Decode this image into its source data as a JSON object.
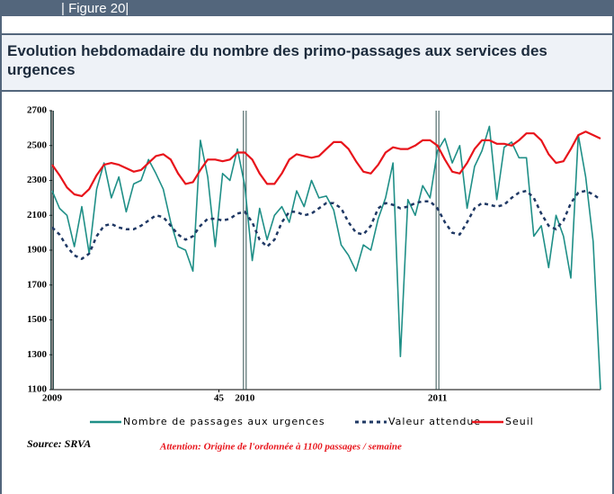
{
  "header": "| Figure 20|",
  "chart_data": {
    "type": "line",
    "title": "Evolution hebdomadaire du nombre des primo-passages aux services des urgences",
    "source": "Source: SRVA",
    "annotation": "Attention: Origine de l'ordonnée à 1100 passages / semaine",
    "x": [
      0,
      2,
      4,
      6,
      8,
      10,
      12,
      14,
      16,
      18,
      20,
      22,
      24,
      26,
      28,
      30,
      32,
      34,
      36,
      38,
      40,
      42,
      44,
      46,
      48,
      50,
      52,
      54,
      56,
      58,
      60,
      62,
      64,
      66,
      68,
      70,
      72,
      74,
      76,
      78,
      80,
      82,
      84,
      86,
      88,
      90,
      92,
      94,
      96,
      98,
      100,
      102,
      104,
      106,
      108,
      110,
      112,
      114,
      116,
      118,
      120,
      122,
      124,
      126,
      128,
      130,
      132,
      134,
      136,
      138,
      140,
      142,
      144,
      146,
      148
    ],
    "xlim": [
      0,
      148
    ],
    "xticks": [
      {
        "value": 0,
        "label": "2009"
      },
      {
        "value": 52,
        "label": "2010"
      },
      {
        "value": 104,
        "label": "2011"
      },
      45
    ],
    "ylim": [
      1100,
      2700
    ],
    "yticks": [
      1100,
      1300,
      1500,
      1700,
      1900,
      2100,
      2300,
      2500,
      2700
    ],
    "series": [
      {
        "name": "Nombre de passages aux urgences",
        "color": "#1f8f87",
        "dash": false,
        "values": [
          2240,
          2140,
          2100,
          1920,
          2150,
          1880,
          2250,
          2400,
          2200,
          2320,
          2120,
          2280,
          2300,
          2420,
          2340,
          2250,
          2060,
          1920,
          1900,
          1780,
          2530,
          2320,
          1920,
          2340,
          2300,
          2480,
          2270,
          1840,
          2140,
          1960,
          2100,
          2150,
          2060,
          2240,
          2150,
          2300,
          2200,
          2210,
          2130,
          1930,
          1870,
          1780,
          1930,
          1900,
          2080,
          2200,
          2400,
          1290,
          2190,
          2100,
          2270,
          2200,
          2470,
          2540,
          2400,
          2500,
          2140,
          2380,
          2470,
          2610,
          2190,
          2490,
          2520,
          2430,
          2430,
          1980,
          2040,
          1800,
          2100,
          1980,
          1740,
          2560,
          2320,
          1950,
          1100
        ]
      },
      {
        "name": "Valeur attendue",
        "color": "#1f3864",
        "dash": true,
        "values": [
          2030,
          1990,
          1920,
          1870,
          1850,
          1880,
          1980,
          2040,
          2050,
          2030,
          2020,
          2020,
          2040,
          2070,
          2100,
          2090,
          2040,
          1990,
          1960,
          1980,
          2040,
          2080,
          2080,
          2070,
          2080,
          2110,
          2120,
          2060,
          1960,
          1920,
          1960,
          2060,
          2120,
          2120,
          2100,
          2110,
          2140,
          2170,
          2170,
          2140,
          2060,
          2000,
          1990,
          2040,
          2140,
          2170,
          2160,
          2140,
          2150,
          2170,
          2180,
          2180,
          2140,
          2060,
          2000,
          1990,
          2060,
          2140,
          2170,
          2160,
          2150,
          2160,
          2200,
          2230,
          2240,
          2200,
          2110,
          2040,
          2020,
          2070,
          2170,
          2230,
          2240,
          2220,
          2190
        ]
      },
      {
        "name": "Seuil",
        "color": "#e8141b",
        "dash": false,
        "values": [
          2390,
          2330,
          2260,
          2220,
          2210,
          2250,
          2330,
          2390,
          2400,
          2390,
          2370,
          2350,
          2360,
          2400,
          2440,
          2450,
          2420,
          2340,
          2280,
          2290,
          2360,
          2420,
          2420,
          2410,
          2420,
          2460,
          2460,
          2420,
          2340,
          2280,
          2280,
          2340,
          2420,
          2450,
          2440,
          2430,
          2440,
          2480,
          2520,
          2520,
          2480,
          2410,
          2350,
          2340,
          2390,
          2460,
          2490,
          2480,
          2480,
          2500,
          2530,
          2530,
          2500,
          2420,
          2350,
          2340,
          2400,
          2480,
          2530,
          2530,
          2510,
          2510,
          2500,
          2530,
          2570,
          2570,
          2530,
          2450,
          2400,
          2410,
          2480,
          2560,
          2580,
          2560,
          2540
        ]
      }
    ]
  }
}
